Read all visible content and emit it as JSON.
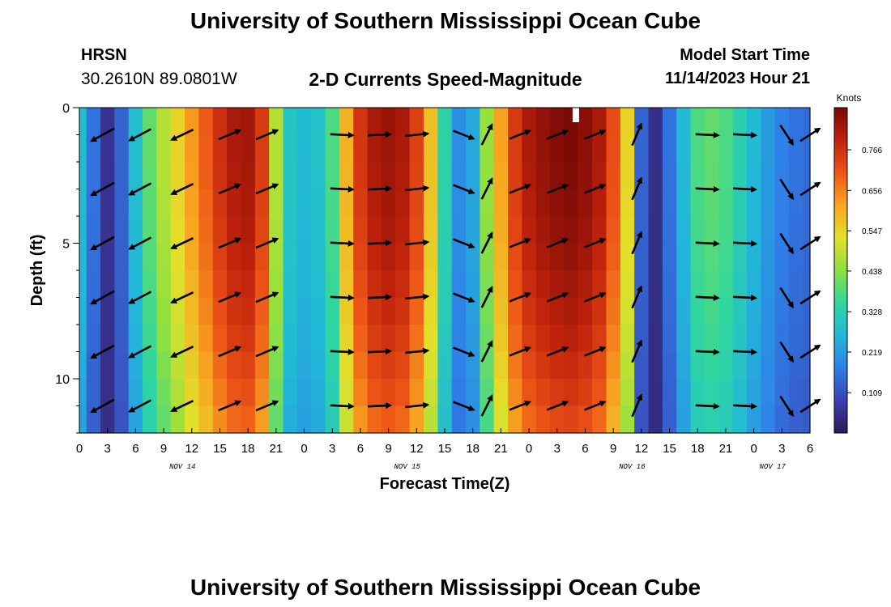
{
  "header": {
    "title": "University of Southern Mississippi Ocean Cube",
    "station": "HRSN",
    "coordinates": "30.2610N  89.0801W",
    "plot_title": "2-D Currents Speed-Magnitude",
    "model_label": "Model Start Time",
    "model_time": "11/14/2023 Hour 21"
  },
  "footer": {
    "title": "University of Southern Mississippi Ocean Cube"
  },
  "chart_data": {
    "type": "heatmap",
    "title": "2-D Currents Speed-Magnitude",
    "xlabel": "Forecast Time(Z)",
    "ylabel": "Depth (ft)",
    "x_range_hours": [
      0,
      78
    ],
    "ylim": [
      0,
      12
    ],
    "x_tick_labels": [
      "0",
      "3",
      "6",
      "9",
      "12",
      "15",
      "18",
      "21",
      "0",
      "3",
      "6",
      "9",
      "12",
      "15",
      "18",
      "21",
      "0",
      "3",
      "6",
      "9",
      "12",
      "15",
      "18",
      "21",
      "0",
      "3",
      "6"
    ],
    "y_ticks": [
      0,
      5,
      10
    ],
    "date_labels": [
      {
        "text": "NOV 14",
        "hour": 11
      },
      {
        "text": "NOV 15",
        "hour": 35
      },
      {
        "text": "NOV 16",
        "hour": 59
      },
      {
        "text": "NOV 17",
        "hour": 74
      }
    ],
    "colorbar": {
      "unit": "Knots",
      "range": [
        0.0,
        0.88
      ],
      "ticks": [
        "0.766",
        "0.656",
        "0.547",
        "0.438",
        "0.328",
        "0.219",
        "0.109"
      ],
      "colors": [
        "#2d1a55",
        "#3b3fb0",
        "#2f7fe8",
        "#22b8d8",
        "#2fd6a0",
        "#8ee040",
        "#e3e02a",
        "#f8a621",
        "#ee5517",
        "#c0220c",
        "#7a0a05"
      ]
    },
    "depths_ft": [
      1,
      3,
      5,
      7,
      9,
      11
    ],
    "speed_profile": [
      {
        "hour": 0,
        "speed": 0.28
      },
      {
        "hour": 1.5,
        "speed": 0.16
      },
      {
        "hour": 3,
        "speed": 0.06
      },
      {
        "hour": 4.5,
        "speed": 0.14
      },
      {
        "hour": 6,
        "speed": 0.28
      },
      {
        "hour": 7.5,
        "speed": 0.4
      },
      {
        "hour": 9,
        "speed": 0.48
      },
      {
        "hour": 10.5,
        "speed": 0.55
      },
      {
        "hour": 12,
        "speed": 0.63
      },
      {
        "hour": 13.5,
        "speed": 0.7
      },
      {
        "hour": 15,
        "speed": 0.77
      },
      {
        "hour": 16.5,
        "speed": 0.82
      },
      {
        "hour": 18,
        "speed": 0.83
      },
      {
        "hour": 19.5,
        "speed": 0.75
      },
      {
        "hour": 21,
        "speed": 0.48
      },
      {
        "hour": 22.5,
        "speed": 0.3
      },
      {
        "hour": 24,
        "speed": 0.27
      },
      {
        "hour": 25.5,
        "speed": 0.29
      },
      {
        "hour": 27,
        "speed": 0.38
      },
      {
        "hour": 28.5,
        "speed": 0.6
      },
      {
        "hour": 30,
        "speed": 0.76
      },
      {
        "hour": 31.5,
        "speed": 0.82
      },
      {
        "hour": 33,
        "speed": 0.84
      },
      {
        "hour": 34.5,
        "speed": 0.82
      },
      {
        "hour": 36,
        "speed": 0.74
      },
      {
        "hour": 37.5,
        "speed": 0.58
      },
      {
        "hour": 39,
        "speed": 0.34
      },
      {
        "hour": 40.5,
        "speed": 0.2
      },
      {
        "hour": 42,
        "speed": 0.24
      },
      {
        "hour": 43.5,
        "speed": 0.45
      },
      {
        "hour": 45,
        "speed": 0.62
      },
      {
        "hour": 46.5,
        "speed": 0.75
      },
      {
        "hour": 48,
        "speed": 0.82
      },
      {
        "hour": 49.5,
        "speed": 0.85
      },
      {
        "hour": 51,
        "speed": 0.87
      },
      {
        "hour": 52.5,
        "speed": 0.88
      },
      {
        "hour": 54,
        "speed": 0.86
      },
      {
        "hour": 55.5,
        "speed": 0.82
      },
      {
        "hour": 57,
        "speed": 0.72
      },
      {
        "hour": 58.5,
        "speed": 0.55
      },
      {
        "hour": 60,
        "speed": 0.14
      },
      {
        "hour": 61.5,
        "speed": 0.05
      },
      {
        "hour": 63,
        "speed": 0.16
      },
      {
        "hour": 64.5,
        "speed": 0.27
      },
      {
        "hour": 66,
        "speed": 0.38
      },
      {
        "hour": 67.5,
        "speed": 0.4
      },
      {
        "hour": 69,
        "speed": 0.38
      },
      {
        "hour": 70.5,
        "speed": 0.33
      },
      {
        "hour": 72,
        "speed": 0.27
      },
      {
        "hour": 73.5,
        "speed": 0.22
      },
      {
        "hour": 75,
        "speed": 0.18
      },
      {
        "hour": 76.5,
        "speed": 0.16
      },
      {
        "hour": 78,
        "speed": 0.15
      }
    ],
    "vectors": [
      {
        "hour": 2.5,
        "dx": -1.0,
        "dy": 0.55
      },
      {
        "hour": 6.5,
        "dx": -0.95,
        "dy": 0.5
      },
      {
        "hour": 11,
        "dx": -0.95,
        "dy": 0.45
      },
      {
        "hour": 16,
        "dx": 0.95,
        "dy": -0.4
      },
      {
        "hour": 20,
        "dx": 0.95,
        "dy": -0.4
      },
      {
        "hour": 28,
        "dx": 1.0,
        "dy": 0.05
      },
      {
        "hour": 32,
        "dx": 1.0,
        "dy": -0.05
      },
      {
        "hour": 36,
        "dx": 1.0,
        "dy": -0.1
      },
      {
        "hour": 41,
        "dx": 0.9,
        "dy": 0.35
      },
      {
        "hour": 43.5,
        "dx": 0.45,
        "dy": -0.9
      },
      {
        "hour": 47,
        "dx": 0.9,
        "dy": -0.35
      },
      {
        "hour": 51,
        "dx": 0.9,
        "dy": -0.35
      },
      {
        "hour": 55,
        "dx": 0.9,
        "dy": -0.35
      },
      {
        "hour": 59.5,
        "dx": 0.4,
        "dy": -0.95
      },
      {
        "hour": 67,
        "dx": 1.0,
        "dy": 0.05
      },
      {
        "hour": 71,
        "dx": 1.0,
        "dy": 0.05
      },
      {
        "hour": 75.5,
        "dx": 0.55,
        "dy": 0.85
      },
      {
        "hour": 78,
        "dx": 0.85,
        "dy": -0.55
      }
    ]
  }
}
